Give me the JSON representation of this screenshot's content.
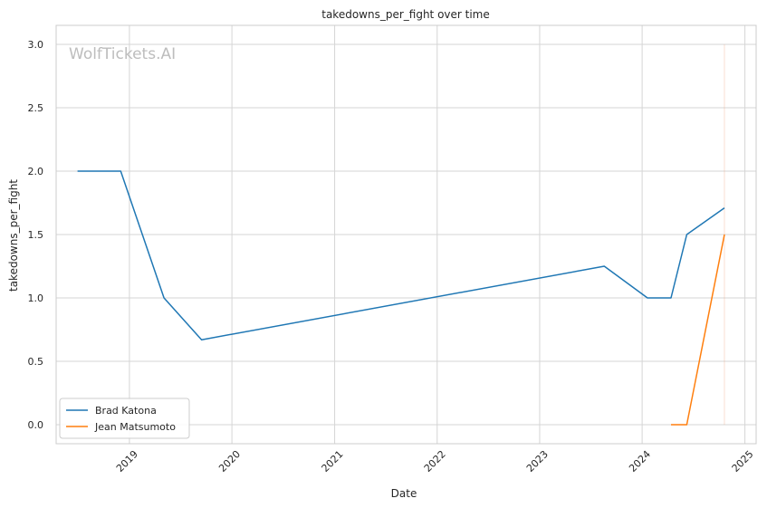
{
  "chart_data": {
    "type": "line",
    "title": "takedowns_per_fight over time",
    "xlabel": "Date",
    "ylabel": "takedowns_per_fight",
    "watermark": "WolfTickets.AI",
    "grid": true,
    "legend_position": "lower-left",
    "x_ticks": [
      "2019",
      "2020",
      "2021",
      "2022",
      "2023",
      "2024",
      "2025"
    ],
    "y_ticks": [
      "0.0",
      "0.5",
      "1.0",
      "1.5",
      "2.0",
      "2.5",
      "3.0"
    ],
    "xlim": [
      "2018-04-15",
      "2025-02-10"
    ],
    "ylim": [
      -0.15,
      3.15
    ],
    "series": [
      {
        "name": "Brad Katona",
        "color": "#1f77b4",
        "points": [
          {
            "x": "2018-06-30",
            "y": 2.0
          },
          {
            "x": "2018-12-01",
            "y": 2.0
          },
          {
            "x": "2019-05-04",
            "y": 1.0
          },
          {
            "x": "2019-09-15",
            "y": 0.67
          },
          {
            "x": "2023-08-19",
            "y": 1.25
          },
          {
            "x": "2024-01-20",
            "y": 1.0
          },
          {
            "x": "2024-04-13",
            "y": 1.0
          },
          {
            "x": "2024-06-08",
            "y": 1.5
          },
          {
            "x": "2024-10-20",
            "y": 1.71
          }
        ]
      },
      {
        "name": "Jean Matsumoto",
        "color": "#ff7f0e",
        "points": [
          {
            "x": "2024-04-13",
            "y": 0.0
          },
          {
            "x": "2024-06-08",
            "y": 0.0
          },
          {
            "x": "2024-10-20",
            "y": 1.5
          }
        ]
      }
    ],
    "vertical_marker": {
      "x": "2024-10-20",
      "color": "#f4a582"
    }
  }
}
